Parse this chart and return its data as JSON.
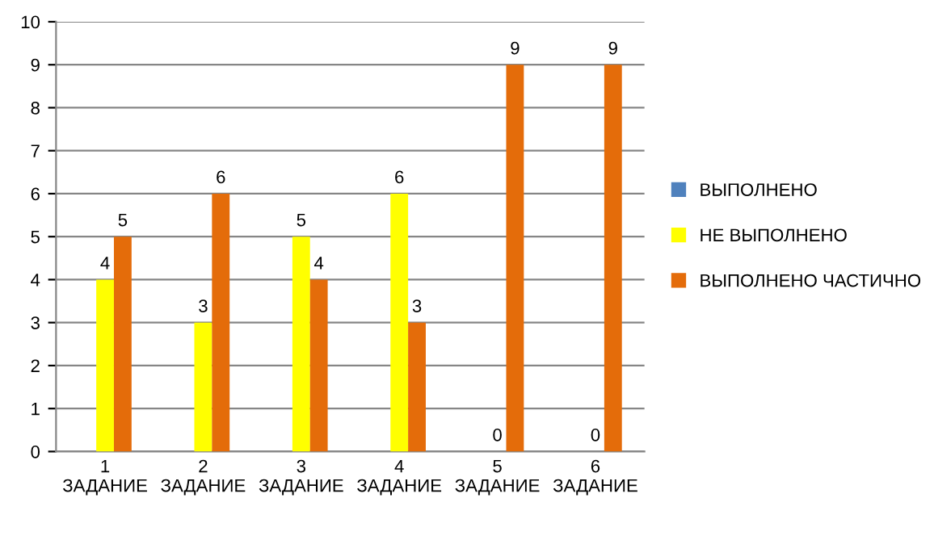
{
  "chart_data": {
    "type": "bar",
    "categories": [
      "1\nЗАДАНИЕ",
      "2\nЗАДАНИЕ",
      "3\nЗАДАНИЕ",
      "4\nЗАДАНИЕ",
      "5\nЗАДАНИЕ",
      "6\nЗАДАНИЕ"
    ],
    "series": [
      {
        "name": "ВЫПОЛНЕНО",
        "color": "#4f81bd",
        "values": [
          0,
          0,
          0,
          0,
          0,
          0
        ],
        "value_labels": [
          null,
          null,
          null,
          null,
          null,
          null
        ]
      },
      {
        "name": "НЕ ВЫПОЛНЕНО",
        "color": "#ffff00",
        "values": [
          4,
          3,
          5,
          6,
          0,
          0
        ],
        "value_labels": [
          "4",
          "3",
          "5",
          "6",
          "0",
          "0"
        ]
      },
      {
        "name": "ВЫПОЛНЕНО ЧАСТИЧНО",
        "color": "#e46c0a",
        "values": [
          5,
          6,
          4,
          3,
          9,
          9
        ],
        "value_labels": [
          "5",
          "6",
          "4",
          "3",
          "9",
          "9"
        ]
      }
    ],
    "ylim": [
      0,
      10
    ],
    "yticks": [
      0,
      1,
      2,
      3,
      4,
      5,
      6,
      7,
      8,
      9,
      10
    ],
    "grid": "y",
    "legend": "right"
  }
}
